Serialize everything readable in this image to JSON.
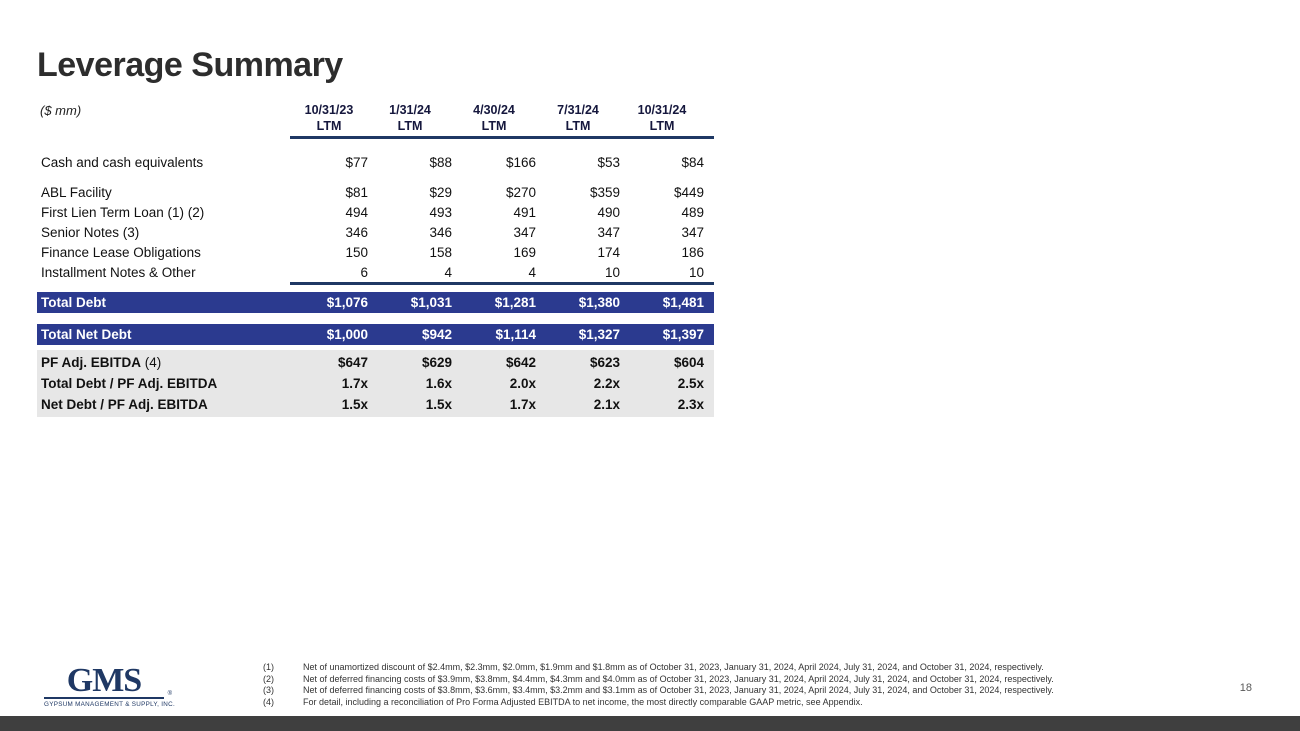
{
  "slide": {
    "title": "Leverage Summary",
    "units_label": "($ mm)",
    "page_number": "18"
  },
  "table": {
    "column_headers": [
      {
        "date": "10/31/23",
        "period": "LTM"
      },
      {
        "date": "1/31/24",
        "period": "LTM"
      },
      {
        "date": "4/30/24",
        "period": "LTM"
      },
      {
        "date": "7/31/24",
        "period": "LTM"
      },
      {
        "date": "10/31/24",
        "period": "LTM"
      }
    ],
    "cash_row": {
      "label": "Cash and cash equivalents",
      "values": [
        "$77",
        "$88",
        "$166",
        "$53",
        "$84"
      ]
    },
    "debt_rows": [
      {
        "label": "ABL Facility",
        "values": [
          "$81",
          "$29",
          "$270",
          "$359",
          "$449"
        ]
      },
      {
        "label": "First Lien Term Loan (1) (2)",
        "values": [
          "494",
          "493",
          "491",
          "490",
          "489"
        ]
      },
      {
        "label": "Senior Notes (3)",
        "values": [
          "346",
          "346",
          "347",
          "347",
          "347"
        ]
      },
      {
        "label": "Finance Lease Obligations",
        "values": [
          "150",
          "158",
          "169",
          "174",
          "186"
        ]
      },
      {
        "label": "Installment Notes & Other",
        "values": [
          "6",
          "4",
          "4",
          "10",
          "10"
        ]
      }
    ],
    "total_debt_row": {
      "label": "Total Debt",
      "values": [
        "$1,076",
        "$1,031",
        "$1,281",
        "$1,380",
        "$1,481"
      ]
    },
    "total_net_debt_row": {
      "label": "Total Net Debt",
      "values": [
        "$1,000",
        "$942",
        "$1,114",
        "$1,327",
        "$1,397"
      ]
    },
    "ebitda_rows": [
      {
        "label_main": "PF Adj. EBITDA",
        "label_note": " (4)",
        "values": [
          "$647",
          "$629",
          "$642",
          "$623",
          "$604"
        ]
      },
      {
        "label_main": "Total Debt / PF Adj. EBITDA",
        "label_note": "",
        "values": [
          "1.7x",
          "1.6x",
          "2.0x",
          "2.2x",
          "2.5x"
        ]
      },
      {
        "label_main": "Net Debt / PF Adj. EBITDA",
        "label_note": "",
        "values": [
          "1.5x",
          "1.5x",
          "1.7x",
          "2.1x",
          "2.3x"
        ]
      }
    ]
  },
  "footnotes": [
    {
      "num": "(1)",
      "text": "Net of unamortized discount of $2.4mm, $2.3mm, $2.0mm, $1.9mm and $1.8mm as of October 31, 2023, January 31, 2024, April 2024, July 31, 2024, and October 31, 2024, respectively."
    },
    {
      "num": "(2)",
      "text": "Net of deferred financing costs of $3.9mm, $3.8mm, $4.4mm, $4.3mm and $4.0mm as of October 31, 2023, January 31, 2024, April 2024, July 31, 2024, and October 31, 2024, respectively."
    },
    {
      "num": "(3)",
      "text": "Net of deferred financing costs of $3.8mm, $3.6mm, $3.4mm, $3.2mm and $3.1mm as of October 31, 2023, January 31, 2024, April 2024, July 31, 2024, and October 31, 2024, respectively."
    },
    {
      "num": "(4)",
      "text": "For detail, including a reconciliation of Pro Forma Adjusted EBITDA to net income, the most directly comparable GAAP metric, see Appendix."
    }
  ],
  "logo": {
    "name": "GMS",
    "registered_mark": "®",
    "tagline": "GYPSUM MANAGEMENT & SUPPLY, INC."
  },
  "colors": {
    "bar_navy": "#2b3a8f",
    "line_navy": "#1f3864",
    "gray_block": "#e7e7e7",
    "bottom_bar": "#3f3f3f"
  }
}
